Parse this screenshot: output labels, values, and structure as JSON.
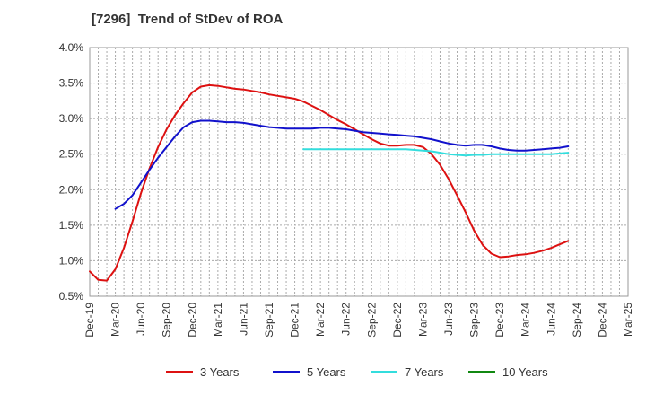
{
  "chart_data": {
    "type": "line",
    "title": "[7296]  Trend of StDev of ROA",
    "xlabel": "",
    "ylabel": "",
    "x_ticks": [
      "Dec-19",
      "Mar-20",
      "Jun-20",
      "Sep-20",
      "Dec-20",
      "Mar-21",
      "Jun-21",
      "Sep-21",
      "Dec-21",
      "Mar-22",
      "Jun-22",
      "Sep-22",
      "Dec-22",
      "Mar-23",
      "Jun-23",
      "Sep-23",
      "Dec-23",
      "Mar-24",
      "Jun-24",
      "Sep-24",
      "Dec-24",
      "Mar-25"
    ],
    "y_ticks": [
      "0.5%",
      "1.0%",
      "1.5%",
      "2.0%",
      "2.5%",
      "3.0%",
      "3.5%",
      "4.0%"
    ],
    "ylim": [
      0.5,
      4.0
    ],
    "grid": true,
    "legend_position": "bottom",
    "series": [
      {
        "name": "3 Years",
        "color": "#dd1111",
        "values": [
          0.85,
          0.73,
          0.72,
          0.88,
          1.18,
          1.55,
          1.95,
          2.3,
          2.6,
          2.85,
          3.05,
          3.22,
          3.37,
          3.45,
          3.47,
          3.46,
          3.44,
          3.42,
          3.41,
          3.39,
          3.37,
          3.34,
          3.32,
          3.3,
          3.28,
          3.24,
          3.18,
          3.12,
          3.05,
          2.98,
          2.92,
          2.85,
          2.78,
          2.71,
          2.65,
          2.62,
          2.62,
          2.63,
          2.63,
          2.6,
          2.5,
          2.35,
          2.15,
          1.92,
          1.68,
          1.42,
          1.22,
          1.1,
          1.05,
          1.06,
          1.08,
          1.09,
          1.11,
          1.14,
          1.18,
          1.23,
          1.28
        ]
      },
      {
        "name": "5 Years",
        "color": "#1111cc",
        "values": [
          null,
          null,
          null,
          1.73,
          1.8,
          1.92,
          2.1,
          2.28,
          2.45,
          2.6,
          2.75,
          2.88,
          2.95,
          2.97,
          2.97,
          2.96,
          2.95,
          2.95,
          2.94,
          2.92,
          2.9,
          2.88,
          2.87,
          2.86,
          2.86,
          2.86,
          2.86,
          2.87,
          2.87,
          2.86,
          2.85,
          2.83,
          2.81,
          2.8,
          2.79,
          2.78,
          2.77,
          2.76,
          2.75,
          2.73,
          2.71,
          2.68,
          2.65,
          2.63,
          2.62,
          2.63,
          2.63,
          2.61,
          2.58,
          2.56,
          2.55,
          2.55,
          2.56,
          2.57,
          2.58,
          2.59,
          2.61
        ]
      },
      {
        "name": "7 Years",
        "color": "#33dddd",
        "values": [
          null,
          null,
          null,
          null,
          null,
          null,
          null,
          null,
          null,
          null,
          null,
          null,
          null,
          null,
          null,
          null,
          null,
          null,
          null,
          null,
          null,
          null,
          null,
          null,
          null,
          2.57,
          2.57,
          2.57,
          2.57,
          2.57,
          2.57,
          2.57,
          2.57,
          2.57,
          2.57,
          2.57,
          2.57,
          2.57,
          2.56,
          2.55,
          2.54,
          2.52,
          2.5,
          2.49,
          2.48,
          2.49,
          2.49,
          2.5,
          2.5,
          2.5,
          2.5,
          2.5,
          2.5,
          2.5,
          2.5,
          2.51,
          2.52
        ]
      },
      {
        "name": "10 Years",
        "color": "#118811",
        "values": []
      }
    ]
  }
}
